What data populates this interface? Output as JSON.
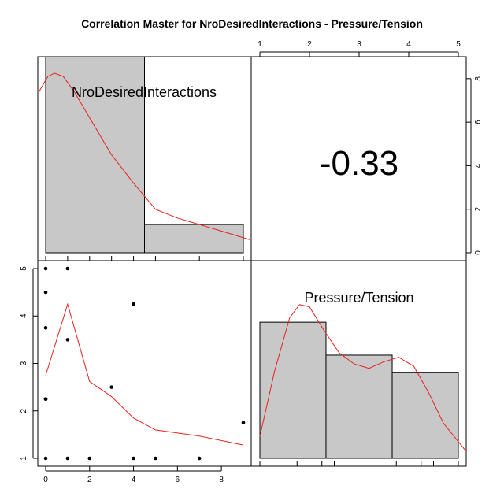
{
  "chart_data": {
    "type": "scatter-matrix",
    "title": "Correlation Master for NroDesiredInteractions - Pressure/Tension",
    "variables": [
      "NroDesiredInteractions",
      "Pressure/Tension"
    ],
    "correlation": {
      "label": "-0.33",
      "value": -0.33
    },
    "ranges": {
      "NroDesiredInteractions": [
        0,
        9
      ],
      "Pressure/Tension": [
        1,
        5
      ],
      "density_axis": [
        0,
        8.5
      ]
    },
    "ticks": {
      "top": [
        1,
        2,
        3,
        4,
        5
      ],
      "bottom": [
        0,
        2,
        4,
        6,
        8
      ],
      "right": [
        0,
        2,
        4,
        6,
        8
      ],
      "left": [
        1,
        2,
        3,
        4,
        5
      ]
    },
    "histogram_nro": {
      "bins": [
        [
          0,
          4.5
        ],
        [
          4.5,
          9
        ]
      ],
      "heights": [
        9,
        1.3
      ]
    },
    "histogram_pressure": {
      "bins": [
        [
          1,
          2.333
        ],
        [
          2.333,
          3.667
        ],
        [
          3.667,
          5
        ]
      ],
      "heights": [
        6.2,
        4.7,
        3.9
      ]
    },
    "density_nro": {
      "x": [
        -0.3,
        0.1,
        0.4,
        0.8,
        1.3,
        2,
        3,
        4,
        5,
        6,
        7,
        8,
        9.3
      ],
      "y": [
        7.4,
        8.1,
        8.25,
        8.1,
        7.4,
        6.2,
        4.5,
        3.2,
        2.0,
        1.6,
        1.3,
        1.0,
        0.6
      ]
    },
    "density_pressure": {
      "x": [
        1,
        1.3,
        1.6,
        1.8,
        2.0,
        2.3,
        2.6,
        2.9,
        3.2,
        3.5,
        3.8,
        4.1,
        4.4,
        4.7,
        5.2
      ],
      "y": [
        1.0,
        4.0,
        6.4,
        7.0,
        6.9,
        5.8,
        4.8,
        4.3,
        4.1,
        4.4,
        4.6,
        4.2,
        3.0,
        1.6,
        0.2
      ]
    },
    "scatter": {
      "x": [
        0,
        0,
        0,
        0,
        0,
        0,
        1,
        1,
        1,
        2,
        3,
        4,
        4,
        5,
        7,
        9
      ],
      "y": [
        5,
        4.5,
        3.75,
        2.25,
        2.25,
        1,
        5,
        3.5,
        1,
        1,
        2.5,
        4.25,
        1,
        1,
        1,
        1.75
      ]
    },
    "smooth": {
      "x": [
        0,
        1,
        2,
        3,
        4,
        5,
        7,
        9
      ],
      "y": [
        2.75,
        4.25,
        2.62,
        2.3,
        1.85,
        1.6,
        1.47,
        1.28
      ]
    },
    "rug_nro": [
      0,
      1,
      2,
      3,
      4,
      5,
      7,
      9
    ],
    "rug_pressure": [
      1,
      1.75,
      2.25,
      2.5,
      3.5,
      3.75,
      4.25,
      4.5,
      5
    ]
  }
}
